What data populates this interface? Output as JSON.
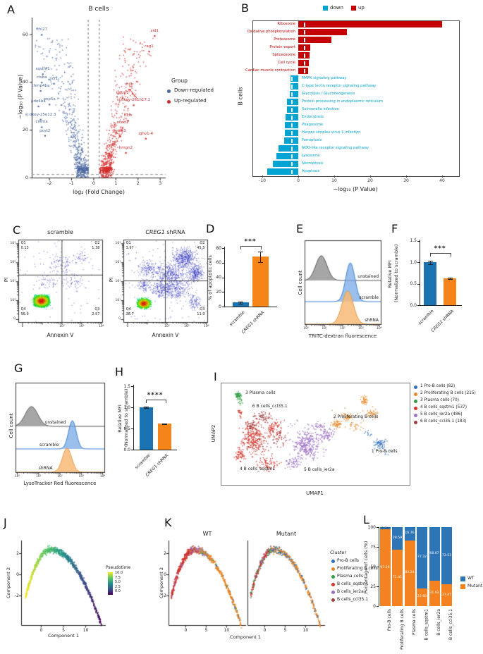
{
  "panel_labels": {
    "A": "A",
    "B": "B",
    "C": "C",
    "D": "D",
    "E": "E",
    "F": "F",
    "G": "G",
    "H": "H",
    "I": "I",
    "J": "J",
    "K": "K",
    "L": "L"
  },
  "chart_data": [
    {
      "panel": "A",
      "type": "scatter",
      "subtype": "volcano",
      "title": "B cells",
      "xlabel": "log₂ (Fold Change)",
      "ylabel": "−log₁₀ (P Value)",
      "xticks": [
        "-2",
        "-1",
        "0",
        "1",
        "2",
        "3"
      ],
      "xtick_vals": [
        -2,
        -1,
        0,
        1,
        2,
        3
      ],
      "yticks": [
        "0",
        "20",
        "40",
        "60"
      ],
      "ytick_vals": [
        0,
        20,
        40,
        60
      ],
      "xlim": [
        -2.8,
        3.25
      ],
      "ylim": [
        0,
        67
      ],
      "vlines": [
        -0.25,
        0.25
      ],
      "hline": 1.3,
      "legend_title": "Group",
      "legend": [
        {
          "label": "Down-regulated",
          "color": "#4a67a0"
        },
        {
          "label": "Up-regulated",
          "color": "#d22a2a"
        }
      ],
      "labeled_genes_down": [
        {
          "g": "fthl27",
          "x": -2.35,
          "y": 61
        },
        {
          "g": "sqstm1",
          "x": -2.3,
          "y": 44.5
        },
        {
          "g": "ctsba",
          "x": -2.35,
          "y": 41
        },
        {
          "g": "ncf1",
          "x": -1.8,
          "y": 40.5
        },
        {
          "g": "chmp4ba",
          "x": -2.4,
          "y": 37.5
        },
        {
          "g": "pnp5a",
          "x": -2.0,
          "y": 31.8
        },
        {
          "g": "pde4ba",
          "x": -2.5,
          "y": 31
        },
        {
          "g": "si:dkey-25e12.3",
          "x": -2.4,
          "y": 25.5
        },
        {
          "g": "crema",
          "x": -2.35,
          "y": 22.3
        },
        {
          "g": "pcyt2",
          "x": -2.2,
          "y": 18.7
        }
      ],
      "labeled_genes_up": [
        {
          "g": "sid1",
          "x": 2.75,
          "y": 60.5
        },
        {
          "g": "rag1",
          "x": 2.5,
          "y": 54
        },
        {
          "g": "myb",
          "x": 1.6,
          "y": 38
        },
        {
          "g": "igfbp1",
          "x": 1.3,
          "y": 34.5
        },
        {
          "g": "si:dkey-261h17.1",
          "x": 1.8,
          "y": 31.5
        },
        {
          "g": "h1fx",
          "x": 1.55,
          "y": 25
        },
        {
          "g": "acod1",
          "x": 1.3,
          "y": 22
        },
        {
          "g": "nme3",
          "x": 1.2,
          "y": 18.5
        },
        {
          "g": "ighv1-4",
          "x": 2.35,
          "y": 17.5
        },
        {
          "g": "hmgn2",
          "x": 1.45,
          "y": 11.5
        }
      ]
    },
    {
      "panel": "B",
      "type": "bar",
      "orientation": "horizontal",
      "ylabel": "B cells",
      "xlabel": "−log₁₀ (P Value)",
      "xticks": [
        "-10",
        "0",
        "10",
        "20",
        "30",
        "40"
      ],
      "xtick_vals": [
        -10,
        0,
        10,
        20,
        30,
        40
      ],
      "legend": [
        {
          "label": "down",
          "color": "#00a3d1"
        },
        {
          "label": "up",
          "color": "#c40000"
        }
      ],
      "up": [
        [
          "Ribosome",
          40
        ],
        [
          "Oxidative phosphorylation",
          13.5
        ],
        [
          "Proteasome",
          9.2
        ],
        [
          "Protein export",
          3.3
        ],
        [
          "Spliceosome",
          3.1
        ],
        [
          "Cell cycle",
          3.0
        ],
        [
          "Cardiac muscle contraction",
          2.8
        ]
      ],
      "down": [
        [
          "MAPK signaling pathway",
          -2.2
        ],
        [
          "C-type lectin receptor signaling pathway",
          -2.2
        ],
        [
          "Glycolysis / Gluconeogenesis",
          -2.4
        ],
        [
          "Protein processing in endoplasmic reticulum",
          -3.1
        ],
        [
          "Salmonella infection",
          -3.1
        ],
        [
          "Endocytosis",
          -3.5
        ],
        [
          "Phagosome",
          -3.7
        ],
        [
          "Herpes simplex virus 1 infection",
          -3.8
        ],
        [
          "Ferroptosis",
          -3.9
        ],
        [
          "NOD-like receptor signaling pathway",
          -5.5
        ],
        [
          "Lysosome",
          -6.1
        ],
        [
          "Necroptosis",
          -7.1
        ],
        [
          "Apoptosis",
          -8.6
        ]
      ]
    },
    {
      "panel": "C-left",
      "type": "flow-quadrant",
      "title": "scramble",
      "xlabel": "Annexin V",
      "ylabel": "PI",
      "xticks": [
        "0",
        "10²",
        "10³",
        "10⁴"
      ],
      "yticks": [
        "10⁴",
        "10³",
        "10²",
        "10¹",
        "0"
      ],
      "quadrants": [
        {
          "q": "Q1",
          "v": "0.13"
        },
        {
          "q": "Q2",
          "v": "1.38"
        },
        {
          "q": "Q3",
          "v": "2.57"
        },
        {
          "q": "Q4",
          "v": "95.9"
        }
      ]
    },
    {
      "panel": "C-right",
      "type": "flow-quadrant",
      "title_italic": "CREG1",
      "title_rest": " shRNA",
      "xlabel": "Annexin V",
      "ylabel": "PI",
      "xticks": [
        "0",
        "10²",
        "10³",
        "10⁴"
      ],
      "yticks": [
        "10⁴",
        "10³",
        "10²",
        "10¹",
        "0"
      ],
      "quadrants": [
        {
          "q": "Q1",
          "v": "3.97"
        },
        {
          "q": "Q2",
          "v": "45.5"
        },
        {
          "q": "Q3",
          "v": "11.9"
        },
        {
          "q": "Q4",
          "v": "38.7"
        }
      ]
    },
    {
      "panel": "D",
      "type": "bar",
      "ylabel": "% of apoptotic cells",
      "yticks": [
        "0",
        "20",
        "40",
        "60",
        "80"
      ],
      "ytick_vals": [
        0,
        20,
        40,
        60,
        80
      ],
      "significance": "***",
      "bars": [
        {
          "label": "scramble",
          "value": 5.5,
          "err": 1.2,
          "color": "#1a72b0"
        },
        {
          "label_italic": "CREG1",
          "label_rest": " shRNA",
          "value": 68,
          "err": 7,
          "color": "#f58518"
        }
      ]
    },
    {
      "panel": "E",
      "type": "histogram-ridge",
      "xlabel": "TRITC-dextran fluorescence",
      "ylabel": "Cell count",
      "xticks": [
        "10⁰",
        "10¹",
        "10²",
        "10³",
        "10⁴"
      ],
      "rows": [
        {
          "label": "unstained"
        },
        {
          "label": "scramble"
        },
        {
          "label": "shRNA"
        }
      ]
    },
    {
      "panel": "F",
      "type": "bar",
      "ylabel_line1": "Relative MFI",
      "ylabel_line2": "(Normalized to scramble)",
      "yticks": [
        "0.0",
        "0.5",
        "1.0",
        "1.5"
      ],
      "ytick_vals": [
        0,
        0.5,
        1,
        1.5
      ],
      "significance": "***",
      "bars": [
        {
          "label": "scramble",
          "value": 1.0,
          "err": 0.04,
          "color": "#1a72b0"
        },
        {
          "label_italic": "CREG1",
          "label_rest": " shRNA",
          "value": 0.63,
          "err": 0.02,
          "color": "#f58518"
        }
      ]
    },
    {
      "panel": "G",
      "type": "histogram-ridge",
      "xlabel": "LysoTracker Red fluorescence",
      "ylabel": "Cell count",
      "xticks": [
        "10⁰",
        "10¹",
        "10²",
        "10³",
        "10⁴"
      ],
      "rows": [
        {
          "label": "unstained"
        },
        {
          "label": "scramble"
        },
        {
          "label": "shRNA"
        }
      ]
    },
    {
      "panel": "H",
      "type": "bar",
      "ylabel_line1": "Relative MFI",
      "ylabel_line2": "(Normalized to scramble)",
      "yticks": [
        "0.0",
        "0.5",
        "1.0",
        "1.5"
      ],
      "ytick_vals": [
        0,
        0.5,
        1,
        1.5
      ],
      "significance": "****",
      "bars": [
        {
          "label": "scramble",
          "value": 1.0,
          "err": 0.02,
          "color": "#1a72b0"
        },
        {
          "label_italic": "CREG1",
          "label_rest": " shRNA",
          "value": 0.61,
          "err": 0.012,
          "color": "#f58518"
        }
      ]
    },
    {
      "panel": "I",
      "type": "scatter",
      "subtype": "umap",
      "xlabel": "UMAP1",
      "ylabel": "UMAP2",
      "legend": [
        {
          "label": "1 Pro-B cells (82)",
          "color": "#2c6fbb"
        },
        {
          "label": "2 Proliferating B cells (215)",
          "color": "#e8882a"
        },
        {
          "label": "3 Plasma cells (70)",
          "color": "#2f9e44"
        },
        {
          "label": "4 B cells_sqstm1 (537)",
          "color": "#d63228"
        },
        {
          "label": "5 B cells_ier2a (486)",
          "color": "#9a6fc3"
        },
        {
          "label": "6 B cells_ccl35.1 (183)",
          "color": "#a04040"
        }
      ],
      "cluster_labels": [
        {
          "t": "3 Plasma cells",
          "fx": 0.131,
          "fy": 0.097
        },
        {
          "t": "6 B cells_ccl35.1",
          "fx": 0.168,
          "fy": 0.229
        },
        {
          "t": "2 Proliferating B cells",
          "fx": 0.599,
          "fy": 0.333
        },
        {
          "t": "1 Pro-B cells",
          "fx": 0.801,
          "fy": 0.674
        },
        {
          "t": "4 B cells_sqstm1",
          "fx": 0.101,
          "fy": 0.847
        },
        {
          "t": "5 B cells_ier2a",
          "fx": 0.442,
          "fy": 0.854
        }
      ]
    },
    {
      "panel": "J",
      "type": "scatter",
      "subtype": "pseudotime-trajectory",
      "xlabel": "Component 1",
      "ylabel": "Component 2",
      "xticks": [
        "0",
        "5",
        "10"
      ],
      "xtick_vals": [
        0,
        5,
        10
      ],
      "yticks": [
        "2",
        "0",
        "-2"
      ],
      "ytick_vals": [
        2,
        0,
        -2
      ],
      "legend_title": "Pseudotime",
      "legend_ticks": [
        "10.0",
        "7.5",
        "5.0",
        "2.5",
        "0.0"
      ],
      "colormap": [
        "#fde725",
        "#5ec962",
        "#21918c",
        "#3b528b",
        "#440154"
      ]
    },
    {
      "panel": "K",
      "type": "scatter",
      "subtype": "trajectory-facets",
      "facets": [
        "WT",
        "Mutant"
      ],
      "xlabel": "Component 1",
      "ylabel": "Component 2",
      "xticks": [
        "0",
        "5",
        "10"
      ],
      "xtick_vals": [
        0,
        5,
        10
      ],
      "yticks": [
        "2",
        "0",
        "-2"
      ],
      "ytick_vals": [
        2,
        0,
        -2
      ],
      "legend_title": "Cluster",
      "legend": [
        {
          "label": "Pro-B cells",
          "color": "#2c6fbb"
        },
        {
          "label": "Proliferating B cells",
          "color": "#e8882a"
        },
        {
          "label": "Plasma cells",
          "color": "#2f9e44"
        },
        {
          "label": "B cells_sqstm1",
          "color": "#d63228"
        },
        {
          "label": "B cells_ier2a",
          "color": "#9a6fc3"
        },
        {
          "label": "B cells_ccl35.1",
          "color": "#a04040"
        }
      ]
    },
    {
      "panel": "L",
      "type": "stacked-bar",
      "ylabel": "Percentage of cells (%)",
      "yticks": [
        "0",
        "25",
        "50",
        "75",
        "100"
      ],
      "ytick_vals": [
        0,
        25,
        50,
        75,
        100
      ],
      "legend": [
        {
          "label": "WT",
          "color": "#2e75b6"
        },
        {
          "label": "Mutant",
          "color": "#f58220"
        }
      ],
      "categories": [
        "Pro-B cells",
        "Proliferating B cells",
        "Plasma cells",
        "B cells_sqstm1",
        "B cells_ier2a",
        "B cells_ccl35.1"
      ],
      "series": [
        {
          "name": "WT",
          "values": [
            2.74,
            28.59,
            16.76,
            77.32,
            68.07,
            72.53
          ]
        },
        {
          "name": "Mutant",
          "values": [
            97.26,
            71.41,
            83.24,
            22.68,
            31.93,
            27.47
          ]
        }
      ]
    }
  ]
}
